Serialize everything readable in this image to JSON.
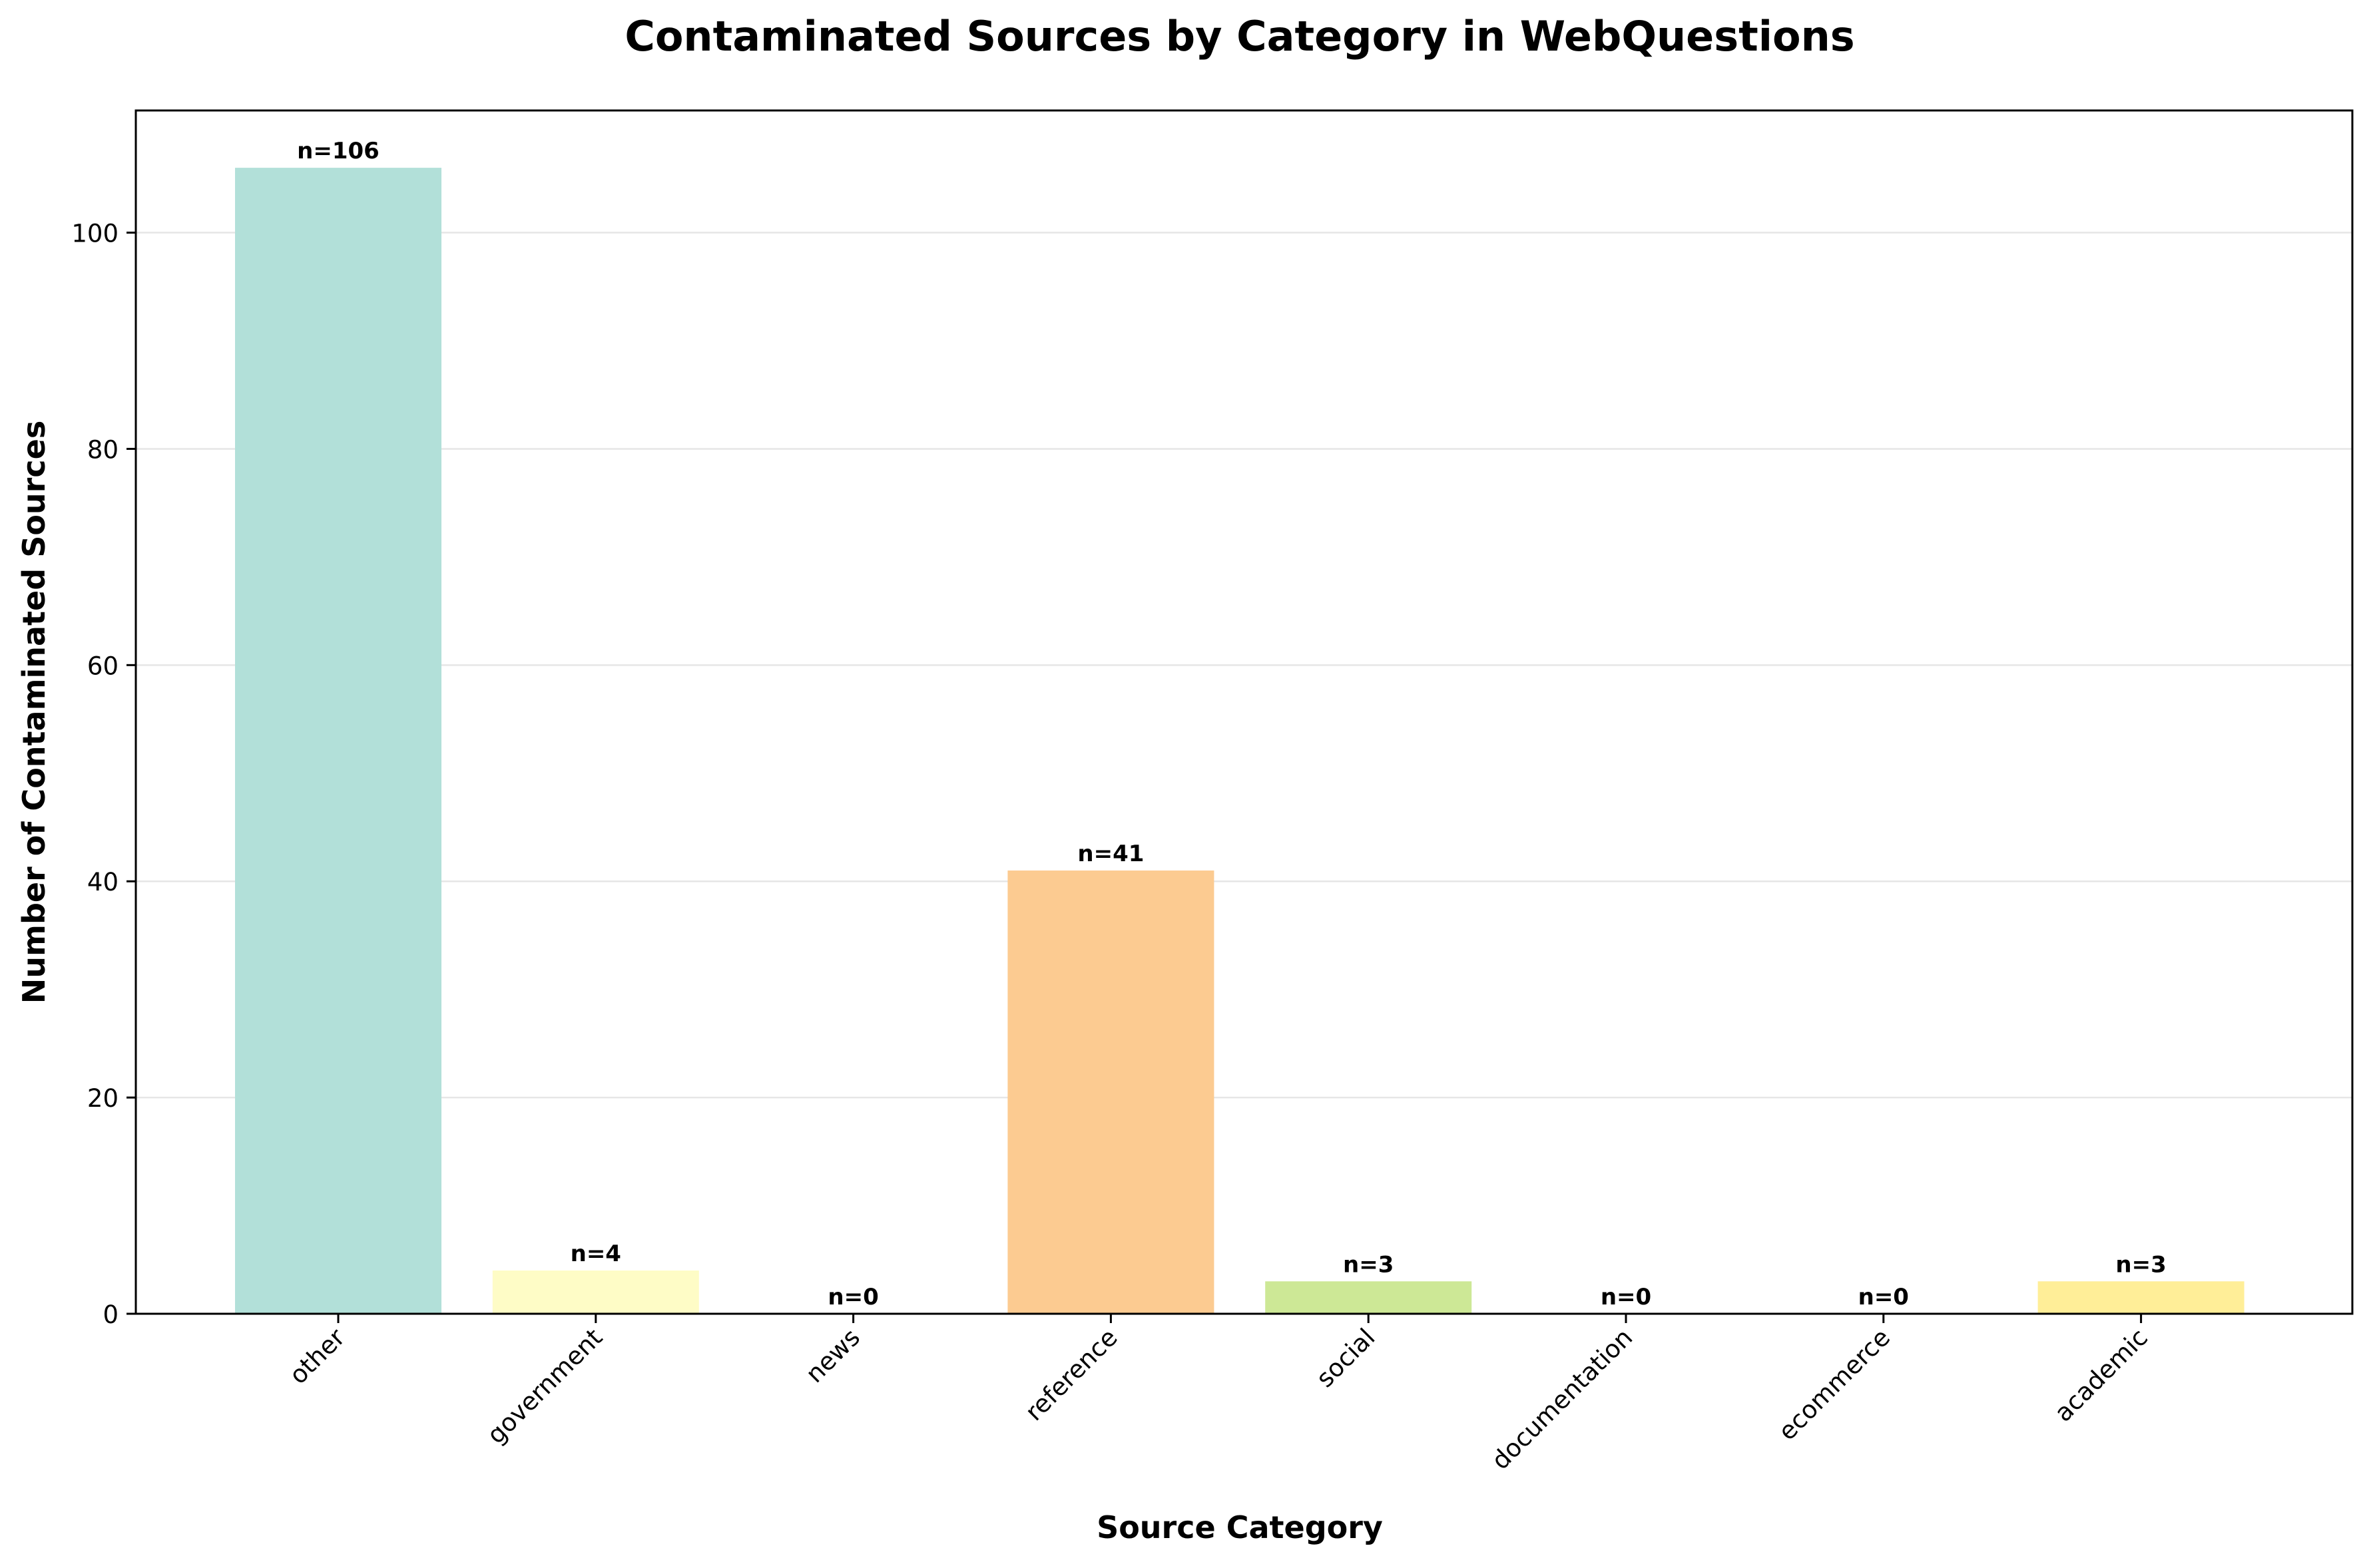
{
  "chart_data": {
    "type": "bar",
    "title": "Contaminated Sources by Category in WebQuestions",
    "xlabel": "Source Category",
    "ylabel": "Number of Contaminated Sources",
    "categories": [
      "other",
      "government",
      "news",
      "reference",
      "social",
      "documentation",
      "ecommerce",
      "academic"
    ],
    "values": [
      106,
      4,
      0,
      41,
      3,
      0,
      0,
      3
    ],
    "value_labels": [
      "n=106",
      "n=4",
      "n=0",
      "n=41",
      "n=3",
      "n=0",
      "n=0",
      "n=3"
    ],
    "bar_colors": [
      "#b2e0d9",
      "#fefcc6",
      "#d7d4e8",
      "#fccb91",
      "#cde896",
      "#f9d6e8",
      "#dad9dc",
      "#ffee98"
    ],
    "ylim": [
      0,
      111.3
    ],
    "yticks": [
      0,
      20,
      40,
      60,
      80,
      100
    ],
    "ytick_labels": [
      "0",
      "20",
      "40",
      "60",
      "80",
      "100"
    ],
    "grid": "y",
    "legend": "none"
  }
}
